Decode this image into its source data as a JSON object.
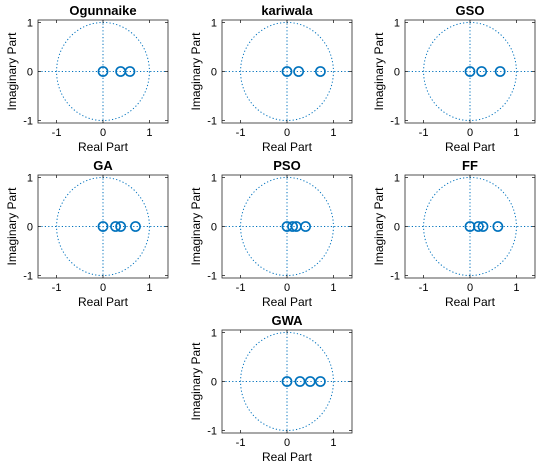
{
  "chart_data": [
    {
      "type": "scatter",
      "title": "Ogunnaike",
      "xlabel": "Real Part",
      "ylabel": "Imaginary Part",
      "xlim": [
        -1.4,
        1.4
      ],
      "ylim": [
        -1.05,
        1.05
      ],
      "xticks": [
        -1,
        0,
        1
      ],
      "yticks": [
        -1,
        0,
        1
      ],
      "unit_circle": true,
      "marker": "o",
      "points": [
        {
          "x": 0.0,
          "y": 0
        },
        {
          "x": 0.38,
          "y": 0
        },
        {
          "x": 0.58,
          "y": 0
        }
      ]
    },
    {
      "type": "scatter",
      "title": "kariwala",
      "xlabel": "Real Part",
      "ylabel": "Imaginary Part",
      "xlim": [
        -1.4,
        1.4
      ],
      "ylim": [
        -1.05,
        1.05
      ],
      "xticks": [
        -1,
        0,
        1
      ],
      "yticks": [
        -1,
        0,
        1
      ],
      "unit_circle": true,
      "marker": "o",
      "points": [
        {
          "x": 0.0,
          "y": 0
        },
        {
          "x": 0.25,
          "y": 0
        },
        {
          "x": 0.72,
          "y": 0
        }
      ]
    },
    {
      "type": "scatter",
      "title": "GSO",
      "xlabel": "Real Part",
      "ylabel": "Imaginary Part",
      "xlim": [
        -1.4,
        1.4
      ],
      "ylim": [
        -1.05,
        1.05
      ],
      "xticks": [
        -1,
        0,
        1
      ],
      "yticks": [
        -1,
        0,
        1
      ],
      "unit_circle": true,
      "marker": "o",
      "points": [
        {
          "x": 0.0,
          "y": 0
        },
        {
          "x": 0.25,
          "y": 0
        },
        {
          "x": 0.65,
          "y": 0
        }
      ]
    },
    {
      "type": "scatter",
      "title": "GA",
      "xlabel": "Real Part",
      "ylabel": "Imaginary Part",
      "xlim": [
        -1.4,
        1.4
      ],
      "ylim": [
        -1.05,
        1.05
      ],
      "xticks": [
        -1,
        0,
        1
      ],
      "yticks": [
        -1,
        0,
        1
      ],
      "unit_circle": true,
      "marker": "o",
      "points": [
        {
          "x": 0.0,
          "y": 0
        },
        {
          "x": 0.27,
          "y": 0
        },
        {
          "x": 0.38,
          "y": 0
        },
        {
          "x": 0.7,
          "y": 0
        }
      ]
    },
    {
      "type": "scatter",
      "title": "PSO",
      "xlabel": "Real Part",
      "ylabel": "Imaginary Part",
      "xlim": [
        -1.4,
        1.4
      ],
      "ylim": [
        -1.05,
        1.05
      ],
      "xticks": [
        -1,
        0,
        1
      ],
      "yticks": [
        -1,
        0,
        1
      ],
      "unit_circle": true,
      "marker": "o",
      "points": [
        {
          "x": 0.0,
          "y": 0
        },
        {
          "x": 0.12,
          "y": 0
        },
        {
          "x": 0.2,
          "y": 0
        },
        {
          "x": 0.4,
          "y": 0
        }
      ]
    },
    {
      "type": "scatter",
      "title": "FF",
      "xlabel": "Real Part",
      "ylabel": "Imaginary Part",
      "xlim": [
        -1.4,
        1.4
      ],
      "ylim": [
        -1.05,
        1.05
      ],
      "xticks": [
        -1,
        0,
        1
      ],
      "yticks": [
        -1,
        0,
        1
      ],
      "unit_circle": true,
      "marker": "o",
      "points": [
        {
          "x": 0.0,
          "y": 0
        },
        {
          "x": 0.18,
          "y": 0
        },
        {
          "x": 0.28,
          "y": 0
        },
        {
          "x": 0.6,
          "y": 0
        }
      ]
    },
    {
      "type": "scatter",
      "title": "GWA",
      "xlabel": "Real Part",
      "ylabel": "Imaginary Part",
      "xlim": [
        -1.4,
        1.4
      ],
      "ylim": [
        -1.05,
        1.05
      ],
      "xticks": [
        -1,
        0,
        1
      ],
      "yticks": [
        -1,
        0,
        1
      ],
      "unit_circle": true,
      "marker": "o",
      "points": [
        {
          "x": 0.0,
          "y": 0
        },
        {
          "x": 0.28,
          "y": 0
        },
        {
          "x": 0.5,
          "y": 0
        },
        {
          "x": 0.72,
          "y": 0
        }
      ]
    }
  ],
  "style": {
    "marker_color": "#0072BD",
    "guide_color": "#0072BD",
    "axis_color": "#262626"
  }
}
